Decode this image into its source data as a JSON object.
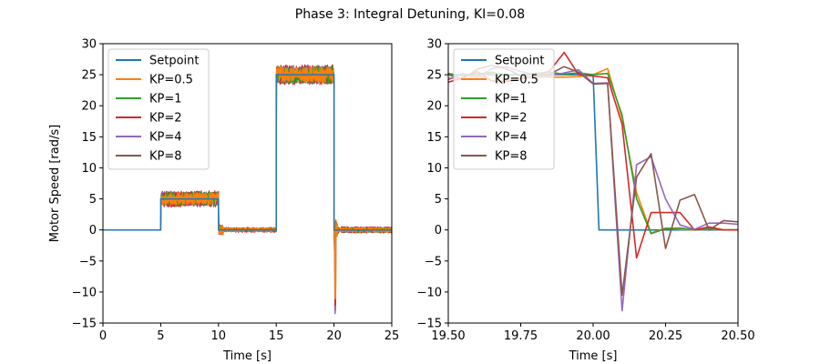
{
  "figure": {
    "title": "Phase 3: Integral Detuning, KI=0.08"
  },
  "legend": [
    "Setpoint",
    "KP=0.5",
    "KP=1",
    "KP=2",
    "KP=4",
    "KP=8"
  ],
  "colors": {
    "Setpoint": "#1f77b4",
    "KP=0.5": "#ff7f0e",
    "KP=1": "#2ca02c",
    "KP=2": "#d62728",
    "KP=4": "#9467bd",
    "KP=8": "#8c564b"
  },
  "chart_data": [
    {
      "type": "line",
      "panel": "left",
      "xlabel": "Time [s]",
      "ylabel": "Motor Speed [rad/s]",
      "xlim": [
        0,
        25
      ],
      "ylim": [
        -15,
        30
      ],
      "xticks": [
        0,
        5,
        10,
        15,
        20,
        25
      ],
      "xtick_labels": [
        "0",
        "5",
        "10",
        "15",
        "20",
        "25"
      ],
      "yticks": [
        -15,
        -10,
        -5,
        0,
        5,
        10,
        15,
        20,
        25,
        30
      ],
      "ytick_labels": [
        "−15",
        "−10",
        "−5",
        "0",
        "5",
        "10",
        "15",
        "20",
        "25",
        "30"
      ],
      "legend_position": "upper-left",
      "grid": false,
      "setpoint": [
        [
          0,
          0
        ],
        [
          5,
          0
        ],
        [
          5,
          5
        ],
        [
          10,
          5
        ],
        [
          10,
          0
        ],
        [
          15,
          0
        ],
        [
          15,
          25
        ],
        [
          20,
          25
        ],
        [
          20,
          0
        ],
        [
          25,
          0
        ]
      ],
      "series": [
        {
          "name": "KP=0.5",
          "steps": [
            [
              0,
              0
            ],
            [
              5,
              5
            ],
            [
              10,
              0
            ],
            [
              15,
              25
            ],
            [
              20,
              0
            ]
          ],
          "noise": [
            0,
            1.0,
            0.3,
            1.3,
            0.4
          ],
          "dip": -10.5
        },
        {
          "name": "KP=1",
          "steps": [
            [
              0,
              0
            ],
            [
              5,
              5
            ],
            [
              10,
              0
            ],
            [
              15,
              25
            ],
            [
              20,
              0
            ]
          ],
          "noise": [
            0,
            1.1,
            0.3,
            1.4,
            0.4
          ],
          "dip": -11
        },
        {
          "name": "KP=2",
          "steps": [
            [
              0,
              0
            ],
            [
              5,
              5
            ],
            [
              10,
              0
            ],
            [
              15,
              25
            ],
            [
              20,
              0
            ]
          ],
          "noise": [
            0,
            1.3,
            0.4,
            1.6,
            0.5
          ],
          "dip": -11.5
        },
        {
          "name": "KP=4",
          "steps": [
            [
              0,
              0
            ],
            [
              5,
              5
            ],
            [
              10,
              0
            ],
            [
              15,
              25
            ],
            [
              20,
              0
            ]
          ],
          "noise": [
            0,
            1.2,
            0.3,
            1.5,
            0.5
          ],
          "dip": -13
        },
        {
          "name": "KP=8",
          "steps": [
            [
              0,
              0
            ],
            [
              5,
              5
            ],
            [
              10,
              0
            ],
            [
              15,
              25
            ],
            [
              20,
              0
            ]
          ],
          "noise": [
            0,
            1.1,
            0.3,
            1.4,
            0.4
          ],
          "dip": -10.5
        }
      ]
    },
    {
      "type": "line",
      "panel": "right",
      "xlabel": "Time [s]",
      "ylabel": "",
      "xlim": [
        19.5,
        20.5
      ],
      "ylim": [
        -15,
        30
      ],
      "xticks": [
        19.5,
        19.75,
        20.0,
        20.25,
        20.5
      ],
      "xtick_labels": [
        "19.50",
        "19.75",
        "20.00",
        "20.25",
        "20.50"
      ],
      "yticks": [
        -15,
        -10,
        -5,
        0,
        5,
        10,
        15,
        20,
        25,
        30
      ],
      "ytick_labels": [
        "−15",
        "−10",
        "−5",
        "0",
        "5",
        "10",
        "15",
        "20",
        "25",
        "30"
      ],
      "legend_position": "upper-left",
      "grid": false,
      "series": [
        {
          "name": "Setpoint",
          "x": [
            19.5,
            19.9,
            20.0,
            20.02,
            20.5
          ],
          "y": [
            25,
            25,
            25,
            0,
            0
          ]
        },
        {
          "name": "KP=0.5",
          "x": [
            19.5,
            19.55,
            19.6,
            19.65,
            19.7,
            19.75,
            19.8,
            19.85,
            19.9,
            19.95,
            20.0,
            20.05,
            20.1,
            20.15,
            20.2,
            20.25,
            20.3,
            20.35,
            20.4,
            20.45,
            20.5
          ],
          "y": [
            24.5,
            24.2,
            24.8,
            25.3,
            24.0,
            24.5,
            24.7,
            24.6,
            24.6,
            24.7,
            25.0,
            26.0,
            18.0,
            6.0,
            -0.5,
            0.3,
            0.1,
            0.0,
            0.1,
            0.0,
            0.0
          ]
        },
        {
          "name": "KP=1",
          "x": [
            19.5,
            19.55,
            19.6,
            19.65,
            19.7,
            19.75,
            19.8,
            19.85,
            19.9,
            19.95,
            20.0,
            20.05,
            20.1,
            20.15,
            20.2,
            20.25,
            20.3,
            20.35,
            20.4,
            20.45,
            20.5
          ],
          "y": [
            25.2,
            24.8,
            25.1,
            25.4,
            24.9,
            25.0,
            25.2,
            25.4,
            25.1,
            25.3,
            25.0,
            25.2,
            18.5,
            5.0,
            -0.6,
            0.2,
            0.3,
            0.0,
            0.2,
            0.0,
            0.0
          ]
        },
        {
          "name": "KP=2",
          "x": [
            19.5,
            19.55,
            19.6,
            19.65,
            19.7,
            19.75,
            19.8,
            19.85,
            19.9,
            19.95,
            20.0,
            20.05,
            20.1,
            20.15,
            20.2,
            20.25,
            20.3,
            20.35,
            20.4,
            20.45,
            20.5
          ],
          "y": [
            23.8,
            24.5,
            25.5,
            24.0,
            23.9,
            24.3,
            24.8,
            25.6,
            28.6,
            25.0,
            24.8,
            24.5,
            17.0,
            -4.5,
            2.8,
            2.8,
            2.8,
            0.0,
            0.5,
            0.0,
            0.0
          ]
        },
        {
          "name": "KP=4",
          "x": [
            19.5,
            19.55,
            19.6,
            19.65,
            19.7,
            19.75,
            19.8,
            19.85,
            19.9,
            19.95,
            20.0,
            20.05,
            20.1,
            20.15,
            20.2,
            20.25,
            20.3,
            20.35,
            20.4,
            20.45,
            20.5
          ],
          "y": [
            24.2,
            25.2,
            24.5,
            26.0,
            26.3,
            25.5,
            25.0,
            24.8,
            25.3,
            25.8,
            23.6,
            23.7,
            -13.0,
            10.5,
            11.8,
            5.0,
            0.8,
            0.1,
            1.1,
            1.1,
            0.9
          ]
        },
        {
          "name": "KP=8",
          "x": [
            19.5,
            19.55,
            19.6,
            19.65,
            19.7,
            19.75,
            19.8,
            19.85,
            19.9,
            19.95,
            20.0,
            20.05,
            20.1,
            20.15,
            20.2,
            20.25,
            20.3,
            20.35,
            20.4,
            20.45,
            20.5
          ],
          "y": [
            25.0,
            24.3,
            25.9,
            26.5,
            26.0,
            24.8,
            24.5,
            25.1,
            26.3,
            25.4,
            23.5,
            23.6,
            -10.5,
            8.5,
            12.3,
            -3.0,
            4.8,
            5.7,
            0.0,
            1.5,
            1.3
          ]
        }
      ]
    }
  ]
}
